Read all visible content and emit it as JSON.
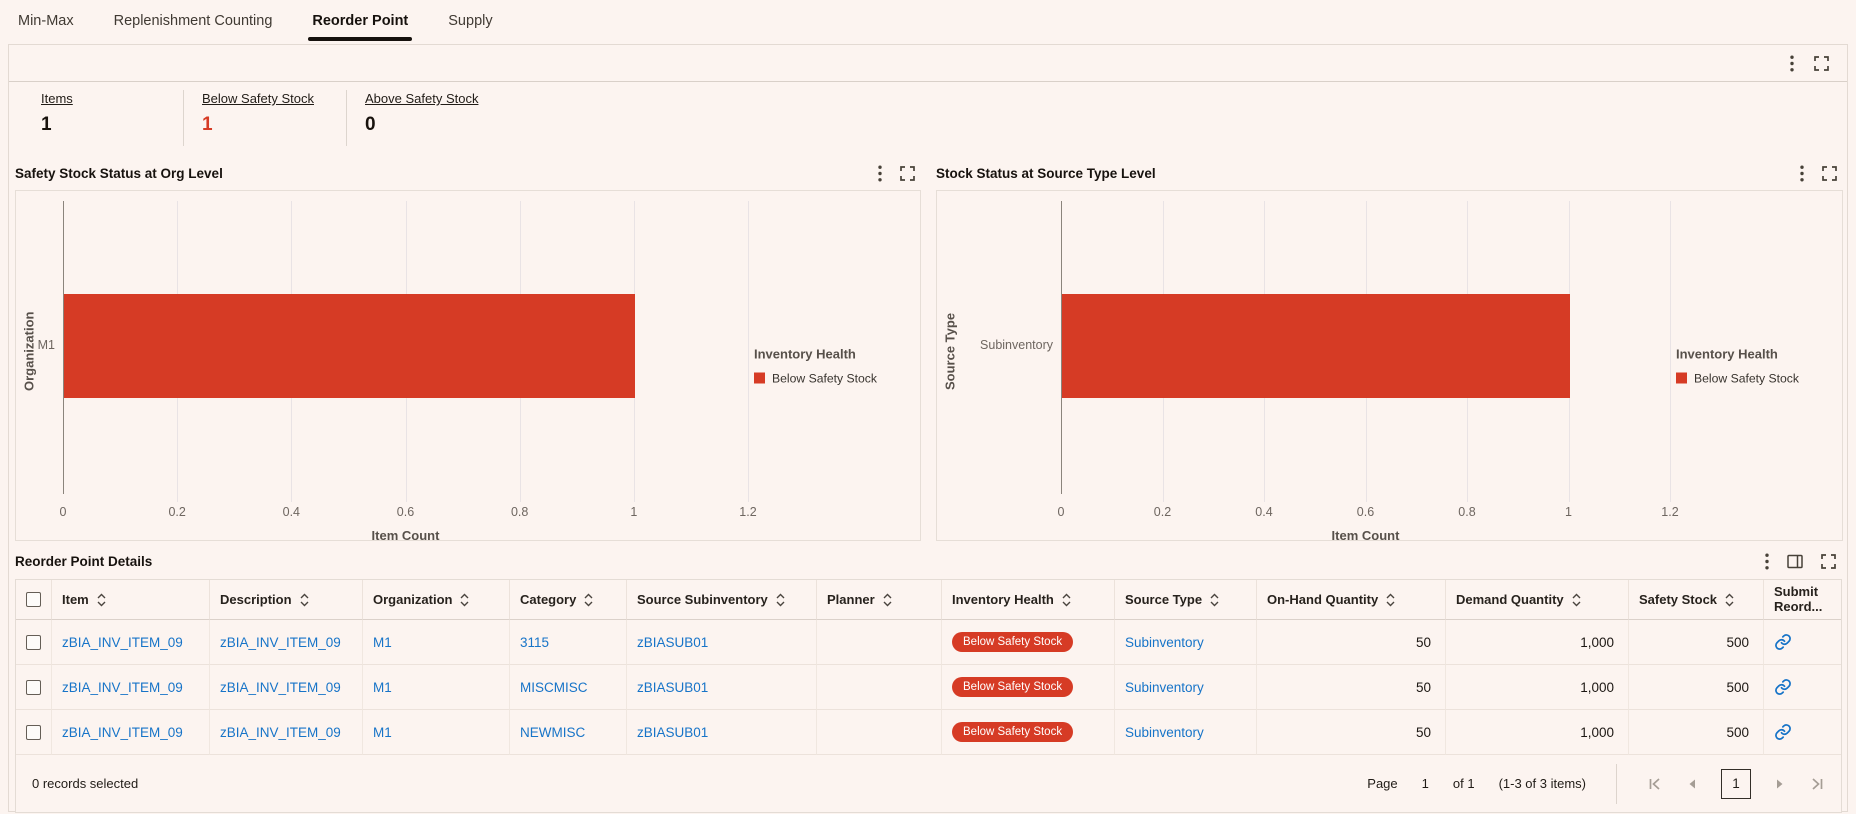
{
  "tabs": [
    {
      "label": "Min-Max",
      "active": false
    },
    {
      "label": "Replenishment Counting",
      "active": false
    },
    {
      "label": "Reorder Point",
      "active": true
    },
    {
      "label": "Supply",
      "active": false
    }
  ],
  "panel_icons": [
    "kebab-menu-icon",
    "expand-icon"
  ],
  "kpis": [
    {
      "label": "Items",
      "value": "1",
      "value_color": "#18120d"
    },
    {
      "label": "Below Safety Stock",
      "value": "1",
      "value_color": "#d63b25"
    },
    {
      "label": "Above Safety Stock",
      "value": "0",
      "value_color": "#18120d"
    }
  ],
  "chart_data": [
    {
      "type": "bar",
      "orientation": "horizontal",
      "title": "Safety Stock Status at Org Level",
      "categories": [
        "M1"
      ],
      "series": [
        {
          "name": "Below Safety Stock",
          "values": [
            1
          ],
          "color": "#d63b25"
        }
      ],
      "xlabel": "Item Count",
      "ylabel": "Organization",
      "x_ticks": [
        "0",
        "0.2",
        "0.4",
        "0.6",
        "0.8",
        "1",
        "1.2"
      ],
      "xlim": [
        0,
        1.44
      ],
      "grid": true,
      "legend_title": "Inventory Health",
      "legend_position": "right",
      "header_icons": [
        "kebab-menu-icon",
        "expand-icon"
      ]
    },
    {
      "type": "bar",
      "orientation": "horizontal",
      "title": "Stock Status at Source Type Level",
      "categories": [
        "Subinventory"
      ],
      "series": [
        {
          "name": "Below Safety Stock",
          "values": [
            1
          ],
          "color": "#d63b25"
        }
      ],
      "xlabel": "Item Count",
      "ylabel": "Source Type",
      "x_ticks": [
        "0",
        "0.2",
        "0.4",
        "0.6",
        "0.8",
        "1",
        "1.2"
      ],
      "xlim": [
        0,
        1.44
      ],
      "grid": true,
      "legend_title": "Inventory Health",
      "legend_position": "right",
      "header_icons": [
        "kebab-menu-icon",
        "expand-icon"
      ]
    }
  ],
  "table": {
    "title": "Reorder Point Details",
    "header_icons": [
      "kebab-menu-icon",
      "manage-columns-icon",
      "expand-icon"
    ],
    "columns": [
      {
        "label": "",
        "key": "select",
        "type": "checkbox",
        "sortable": false
      },
      {
        "label": "Item",
        "key": "item",
        "type": "link",
        "sortable": true
      },
      {
        "label": "Description",
        "key": "description",
        "type": "link",
        "sortable": true
      },
      {
        "label": "Organization",
        "key": "organization",
        "type": "link",
        "sortable": true
      },
      {
        "label": "Category",
        "key": "category",
        "type": "link",
        "sortable": true
      },
      {
        "label": "Source Subinventory",
        "key": "source_subinventory",
        "type": "link",
        "sortable": true
      },
      {
        "label": "Planner",
        "key": "planner",
        "type": "text",
        "sortable": true
      },
      {
        "label": "Inventory Health",
        "key": "inventory_health",
        "type": "badge",
        "sortable": true
      },
      {
        "label": "Source Type",
        "key": "source_type",
        "type": "link",
        "sortable": true
      },
      {
        "label": "On-Hand Quantity",
        "key": "on_hand_quantity",
        "type": "number",
        "sortable": true
      },
      {
        "label": "Demand Quantity",
        "key": "demand_quantity",
        "type": "number",
        "sortable": true
      },
      {
        "label": "Safety Stock",
        "key": "safety_stock",
        "type": "number",
        "sortable": true
      },
      {
        "label": "Submit Reord...",
        "key": "submit_reorder",
        "type": "link-icon",
        "sortable": false
      }
    ],
    "rows": [
      {
        "item": "zBIA_INV_ITEM_09",
        "description": "zBIA_INV_ITEM_09",
        "organization": "M1",
        "category": "3115",
        "source_subinventory": "zBIASUB01",
        "planner": "",
        "inventory_health": "Below Safety Stock",
        "source_type": "Subinventory",
        "on_hand_quantity": "50",
        "demand_quantity": "1,000",
        "safety_stock": "500",
        "submit_reorder": "link-icon"
      },
      {
        "item": "zBIA_INV_ITEM_09",
        "description": "zBIA_INV_ITEM_09",
        "organization": "M1",
        "category": "MISCMISC",
        "source_subinventory": "zBIASUB01",
        "planner": "",
        "inventory_health": "Below Safety Stock",
        "source_type": "Subinventory",
        "on_hand_quantity": "50",
        "demand_quantity": "1,000",
        "safety_stock": "500",
        "submit_reorder": "link-icon"
      },
      {
        "item": "zBIA_INV_ITEM_09",
        "description": "zBIA_INV_ITEM_09",
        "organization": "M1",
        "category": "NEWMISC",
        "source_subinventory": "zBIASUB01",
        "planner": "",
        "inventory_health": "Below Safety Stock",
        "source_type": "Subinventory",
        "on_hand_quantity": "50",
        "demand_quantity": "1,000",
        "safety_stock": "500",
        "submit_reorder": "link-icon"
      }
    ],
    "badge_color": "#d63b25",
    "link_color": "#1774c8",
    "footer": {
      "selected_text": "0 records selected",
      "page_label": "Page",
      "page_value": "1",
      "of_label": "of 1",
      "range_label": "(1-3 of 3 items)",
      "current_page": "1",
      "nav_icons": [
        "first-page-icon",
        "previous-page-icon",
        "next-page-icon",
        "last-page-icon"
      ]
    }
  }
}
